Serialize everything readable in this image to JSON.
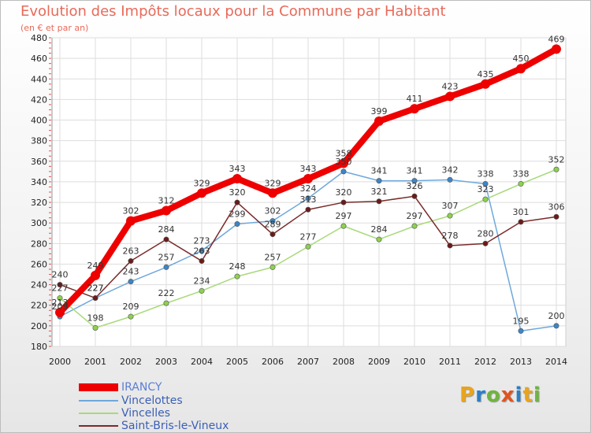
{
  "header": {
    "title": "Evolution des Impôts locaux pour la Commune par Habitant",
    "subtitle": "(en € et par an)"
  },
  "logo": {
    "text": "Proxiti",
    "letters": [
      "P",
      "r",
      "o",
      "x",
      "i",
      "t",
      "i"
    ],
    "colors": [
      "#e9a41c",
      "#2a7fc4",
      "#6fb43f",
      "#e0531f",
      "#2a7fc4",
      "#e9a41c",
      "#6fb43f"
    ]
  },
  "chart_data": {
    "type": "line",
    "title": "Evolution des Impôts locaux pour la Commune par Habitant",
    "subtitle": "(en € et par an)",
    "xlabel": "",
    "ylabel": "",
    "ylim": [
      180,
      480
    ],
    "yticks": [
      180,
      200,
      220,
      240,
      260,
      280,
      300,
      320,
      340,
      360,
      380,
      400,
      420,
      440,
      460,
      480
    ],
    "categories": [
      "2000",
      "2001",
      "2002",
      "2003",
      "2004",
      "2005",
      "2006",
      "2007",
      "2008",
      "2009",
      "2010",
      "2011",
      "2012",
      "2013",
      "2014"
    ],
    "grid": true,
    "legend_position": "bottom-left",
    "series": [
      {
        "name": "IRANCY",
        "color": "#ee0000",
        "marker": "#ee0000",
        "thick": true,
        "values": [
          213,
          249,
          302,
          312,
          329,
          343,
          329,
          343,
          358,
          399,
          411,
          423,
          435,
          450,
          469
        ],
        "labels": [
          "213",
          "249",
          "302",
          "312",
          "329",
          "343",
          "329",
          "343",
          "358",
          "399",
          "411",
          "423",
          "435",
          "450",
          "469"
        ]
      },
      {
        "name": "Vincelottes",
        "color": "#6fa8dc",
        "marker": "#3d85c6",
        "thick": false,
        "values": [
          209,
          227,
          243,
          257,
          273,
          299,
          302,
          324,
          350,
          341,
          341,
          342,
          338,
          195,
          200
        ],
        "labels": [
          "209",
          "227",
          "243",
          "257",
          "273",
          "299",
          "302",
          "324",
          "350",
          "341",
          "341",
          "342",
          "338",
          "195",
          "200"
        ]
      },
      {
        "name": "Vincelles",
        "color": "#a8d97a",
        "marker": "#8ed14f",
        "thick": false,
        "values": [
          227,
          198,
          209,
          222,
          234,
          248,
          257,
          277,
          297,
          284,
          297,
          307,
          323,
          338,
          352
        ],
        "labels": [
          "227",
          "198",
          "209",
          "222",
          "234",
          "248",
          "257",
          "277",
          "297",
          "284",
          "297",
          "307",
          "323",
          "338",
          "352"
        ]
      },
      {
        "name": "Saint-Bris-le-Vineux",
        "color": "#7a2a2a",
        "marker": "#6b1a1a",
        "thick": false,
        "values": [
          240,
          227,
          263,
          284,
          263,
          320,
          289,
          313,
          320,
          321,
          326,
          278,
          280,
          301,
          306
        ],
        "labels": [
          "240",
          "227",
          "263",
          "284",
          "263",
          "320",
          "289",
          "313",
          "320",
          "321",
          "326",
          "278",
          "280",
          "301",
          "306"
        ]
      }
    ]
  }
}
